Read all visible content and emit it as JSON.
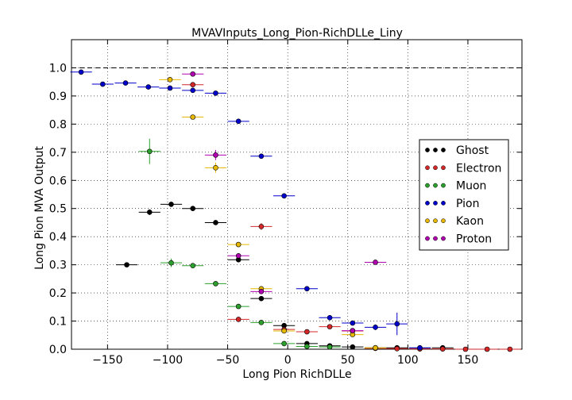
{
  "chart_data": {
    "type": "scatter",
    "title": "MVAVInputs_Long_Pion-RichDLLe_Liny",
    "xlabel": "Long Pion RichDLLe",
    "ylabel": "Long Pion MVA Output",
    "xlim": [
      -180,
      195
    ],
    "ylim": [
      0.0,
      1.1
    ],
    "xticks": [
      -150,
      -100,
      -50,
      0,
      50,
      100,
      150
    ],
    "xtick_labels": [
      "−150",
      "−100",
      "−50",
      "0",
      "50",
      "100",
      "150"
    ],
    "yticks": [
      0.0,
      0.1,
      0.2,
      0.3,
      0.4,
      0.5,
      0.6,
      0.7,
      0.8,
      0.9,
      1.0
    ],
    "ytick_labels": [
      "0.0",
      "0.1",
      "0.2",
      "0.3",
      "0.4",
      "0.5",
      "0.6",
      "0.7",
      "0.8",
      "0.9",
      "1.0"
    ],
    "grid": true,
    "reference_line": 1.0,
    "legend_position": "right",
    "series": [
      {
        "name": "Ghost",
        "color": "#000000",
        "xerr": 9,
        "points": [
          [
            -134,
            0.3,
            0.006
          ],
          [
            -115,
            0.487,
            0.01
          ],
          [
            -97,
            0.515,
            0.007
          ],
          [
            -79,
            0.5,
            0.006
          ],
          [
            -60,
            0.45,
            0.006
          ],
          [
            -41,
            0.318,
            0.007
          ],
          [
            -22,
            0.18,
            0.005
          ],
          [
            -3,
            0.084,
            0.004
          ],
          [
            16,
            0.02,
            0.003
          ],
          [
            35,
            0.012,
            0.002
          ],
          [
            54,
            0.008,
            0.002
          ],
          [
            73,
            0.005,
            0.002
          ],
          [
            91,
            0.005,
            0.002
          ],
          [
            110,
            0.004,
            0.002
          ],
          [
            129,
            0.005,
            0.002
          ]
        ]
      },
      {
        "name": "Electron",
        "color": "#d62728",
        "xerr": 9,
        "points": [
          [
            -79,
            0.94,
            0.005
          ],
          [
            -22,
            0.436,
            0.012
          ],
          [
            -41,
            0.106,
            0.004
          ],
          [
            -3,
            0.07,
            0.004
          ],
          [
            16,
            0.062,
            0.003
          ],
          [
            35,
            0.08,
            0.003
          ],
          [
            54,
            0.065,
            0.003
          ],
          [
            73,
            0.003,
            0.002
          ],
          [
            91,
            0.002,
            0.002
          ],
          [
            110,
            0.001,
            0.001
          ],
          [
            129,
            0.001,
            0.001
          ],
          [
            148,
            0.0,
            0.001
          ],
          [
            166,
            0.0,
            0.001
          ],
          [
            185,
            0.0,
            0.001
          ]
        ]
      },
      {
        "name": "Muon",
        "color": "#2ca02c",
        "xerr": 9,
        "points": [
          [
            -115,
            0.703,
            0.045
          ],
          [
            -97,
            0.307,
            0.015
          ],
          [
            -79,
            0.297,
            0.006
          ],
          [
            -60,
            0.233,
            0.005
          ],
          [
            -41,
            0.152,
            0.004
          ],
          [
            -22,
            0.095,
            0.003
          ],
          [
            -3,
            0.02,
            0.002
          ],
          [
            16,
            0.01,
            0.002
          ],
          [
            35,
            0.008,
            0.002
          ]
        ]
      },
      {
        "name": "Pion",
        "color": "#0000cc",
        "xerr": 9,
        "points": [
          [
            -172,
            0.985,
            0.003
          ],
          [
            -154,
            0.942,
            0.004
          ],
          [
            -135,
            0.946,
            0.003
          ],
          [
            -116,
            0.932,
            0.003
          ],
          [
            -98,
            0.928,
            0.003
          ],
          [
            -79,
            0.92,
            0.003
          ],
          [
            -60,
            0.91,
            0.003
          ],
          [
            -41,
            0.81,
            0.004
          ],
          [
            -22,
            0.686,
            0.005
          ],
          [
            -3,
            0.545,
            0.005
          ],
          [
            16,
            0.215,
            0.005
          ],
          [
            35,
            0.112,
            0.004
          ],
          [
            54,
            0.093,
            0.005
          ],
          [
            73,
            0.078,
            0.01
          ],
          [
            91,
            0.09,
            0.04
          ],
          [
            110,
            0.005,
            0.004
          ]
        ]
      },
      {
        "name": "Kaon",
        "color": "#e6b800",
        "xerr": 9,
        "points": [
          [
            -98,
            0.958,
            0.005
          ],
          [
            -79,
            0.825,
            0.004
          ],
          [
            -60,
            0.645,
            0.018
          ],
          [
            -41,
            0.372,
            0.006
          ],
          [
            -22,
            0.215,
            0.006
          ],
          [
            -3,
            0.065,
            0.004
          ],
          [
            54,
            0.052,
            0.004
          ],
          [
            73,
            0.005,
            0.002
          ]
        ]
      },
      {
        "name": "Proton",
        "color": "#b000b0",
        "xerr": 9,
        "points": [
          [
            -79,
            0.978,
            0.005
          ],
          [
            -60,
            0.69,
            0.018
          ],
          [
            -41,
            0.332,
            0.008
          ],
          [
            -22,
            0.205,
            0.006
          ],
          [
            54,
            0.066,
            0.004
          ],
          [
            73,
            0.309,
            0.005
          ]
        ]
      }
    ]
  }
}
